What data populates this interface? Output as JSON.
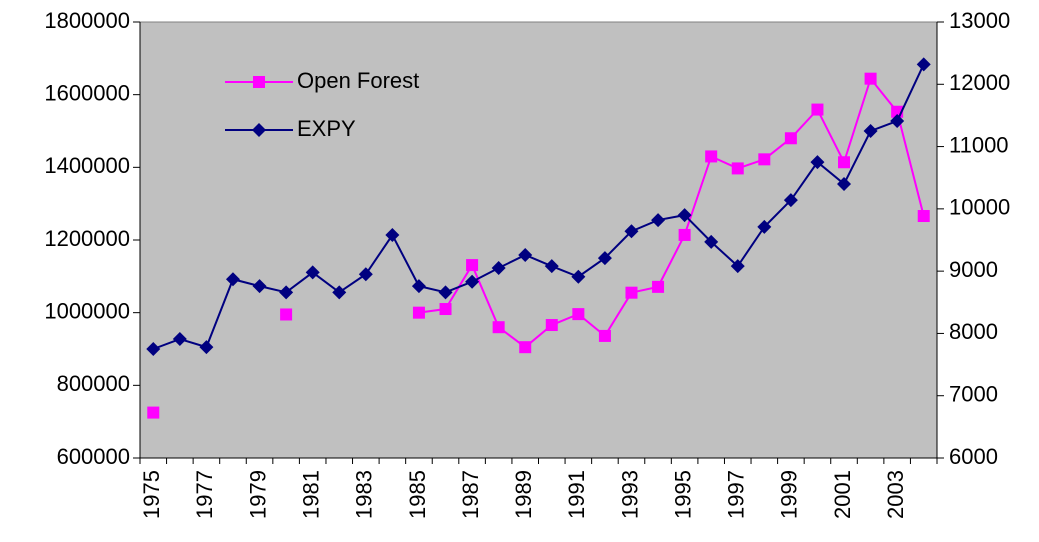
{
  "chart_data": {
    "type": "line",
    "categories": [
      "1975",
      null,
      "1977",
      null,
      "1979",
      null,
      "1981",
      null,
      "1983",
      null,
      "1985",
      null,
      "1987",
      null,
      "1989",
      null,
      "1991",
      null,
      "1993",
      null,
      "1995",
      null,
      "1997",
      null,
      "1999",
      null,
      "2001",
      null,
      "2003",
      null
    ],
    "series": [
      {
        "name": "Open Forest",
        "color": "#ff00ff",
        "marker": "square",
        "values": [
          725000,
          null,
          null,
          null,
          null,
          995000,
          null,
          null,
          null,
          null,
          1000000,
          1010000,
          1131000,
          960000,
          905000,
          966000,
          996000,
          936000,
          1055000,
          1071000,
          1214000,
          1430000,
          1397000,
          1422000,
          1480000,
          1559000,
          1414000,
          1644000,
          1553000,
          1266000
        ]
      },
      {
        "name": "EXPY",
        "color": "#000080",
        "marker": "diamond",
        "axis": "y2",
        "values": [
          7750,
          7910,
          7780,
          8870,
          8760,
          8660,
          8980,
          8660,
          8950,
          9580,
          8760,
          8660,
          8830,
          9050,
          9260,
          9080,
          8910,
          9210,
          9640,
          9820,
          9900,
          9470,
          9080,
          9710,
          10140,
          10750,
          10400,
          11250,
          11410,
          12320
        ]
      }
    ],
    "ylim": [
      600000,
      1800000
    ],
    "yticks": [
      600000,
      800000,
      1000000,
      1200000,
      1400000,
      1600000,
      1800000
    ],
    "y2lim": [
      6000,
      13000
    ],
    "y2ticks": [
      6000,
      7000,
      8000,
      9000,
      10000,
      11000,
      12000,
      13000
    ],
    "grid": false,
    "legend": "upper left",
    "plot_background": "#c0c0c0"
  }
}
